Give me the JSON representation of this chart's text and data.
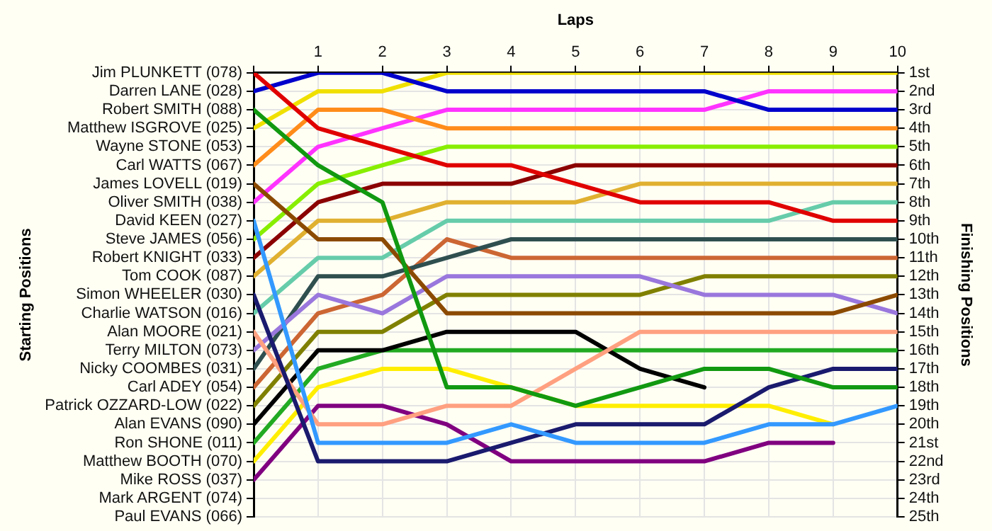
{
  "chart_data": {
    "type": "line",
    "xlabel": "Laps",
    "annotations": [
      "Starting Positions"
    ],
    "y2label": "Finishing Positions",
    "x": [
      0,
      1,
      2,
      3,
      4,
      5,
      6,
      7,
      8,
      9,
      10
    ],
    "xlim": [
      0,
      10
    ],
    "xticks": [
      {
        "value": 0,
        "label": null
      },
      1,
      2,
      3,
      4,
      5,
      6,
      7,
      8,
      9,
      10
    ],
    "y_categories": [
      "Jim PLUNKETT (078)",
      "Darren LANE (028)",
      "Robert SMITH (088)",
      "Matthew ISGROVE (025)",
      "Wayne STONE (053)",
      "Carl WATTS (067)",
      "James LOVELL (019)",
      "Oliver SMITH (038)",
      "David KEEN (027)",
      "Steve JAMES (056)",
      "Robert KNIGHT (033)",
      "Tom COOK (087)",
      "Simon WHEELER (030)",
      "Charlie WATSON (016)",
      "Alan MOORE (021)",
      "Terry MILTON (073)",
      "Nicky COOMBES (031)",
      "Carl ADEY (054)",
      "Patrick OZZARD-LOW (022)",
      "Alan EVANS (090)",
      "Ron SHONE (011)",
      "Matthew BOOTH (070)",
      "Mike ROSS (037)",
      "Mark ARGENT (074)",
      "Paul EVANS (066)"
    ],
    "y2lim": [
      25,
      1
    ],
    "y2ticks": [
      {
        "value": 1,
        "label": "1st"
      },
      {
        "value": 2,
        "label": "2nd"
      },
      {
        "value": 3,
        "label": "3rd"
      },
      {
        "value": 4,
        "label": "4th"
      },
      {
        "value": 5,
        "label": "5th"
      },
      {
        "value": 6,
        "label": "6th"
      },
      {
        "value": 7,
        "label": "7th"
      },
      {
        "value": 8,
        "label": "8th"
      },
      {
        "value": 9,
        "label": "9th"
      },
      {
        "value": 10,
        "label": "10th"
      },
      {
        "value": 11,
        "label": "11th"
      },
      {
        "value": 12,
        "label": "12th"
      },
      {
        "value": 13,
        "label": "13th"
      },
      {
        "value": 14,
        "label": "14th"
      },
      {
        "value": 15,
        "label": "15th"
      },
      {
        "value": 16,
        "label": "16th"
      },
      {
        "value": 17,
        "label": "17th"
      },
      {
        "value": 18,
        "label": "18th"
      },
      {
        "value": 19,
        "label": "19th"
      },
      {
        "value": 20,
        "label": "20th"
      },
      {
        "value": 21,
        "label": "21st"
      },
      {
        "value": 22,
        "label": "22nd"
      },
      {
        "value": 23,
        "label": "23rd"
      },
      {
        "value": 24,
        "label": "24th"
      },
      {
        "value": 25,
        "label": "25th"
      }
    ],
    "grid": true,
    "marker": "none",
    "line_style": "solid",
    "series": [
      {
        "color": "#e00000",
        "axis": "y2",
        "values": [
          1,
          4,
          5,
          6,
          6,
          7,
          8,
          8,
          8,
          9,
          9
        ]
      },
      {
        "color": "#0000cc",
        "axis": "y2",
        "values": [
          2,
          1,
          1,
          2,
          2,
          2,
          2,
          2,
          3,
          3,
          3
        ]
      },
      {
        "color": "#119911",
        "axis": "y2",
        "values": [
          3,
          6,
          8,
          18,
          18,
          19,
          18,
          17,
          17,
          18,
          18
        ]
      },
      {
        "color": "#f0e000",
        "axis": "y2",
        "values": [
          4,
          2,
          2,
          1,
          1,
          1,
          1,
          1,
          1,
          1,
          1
        ]
      },
      {
        "color": "#ff8c1a",
        "axis": "y2",
        "values": [
          6,
          3,
          3,
          4,
          4,
          4,
          4,
          4,
          4,
          4,
          4
        ]
      },
      {
        "color": "#8b4a00",
        "axis": "y2",
        "values": [
          7,
          10,
          10,
          14,
          14,
          14,
          14,
          14,
          14,
          14,
          13
        ]
      },
      {
        "color": "#ff33ff",
        "axis": "y2",
        "values": [
          8,
          5,
          4,
          3,
          3,
          3,
          3,
          3,
          2,
          2,
          2
        ]
      },
      {
        "color": "#3399ff",
        "axis": "y2",
        "values": [
          9,
          21,
          21,
          21,
          20,
          21,
          21,
          21,
          20,
          20,
          19
        ]
      },
      {
        "color": "#88ee00",
        "axis": "y2",
        "values": [
          10,
          7,
          6,
          5,
          5,
          5,
          5,
          5,
          5,
          5,
          5
        ]
      },
      {
        "color": "#8b0000",
        "axis": "y2",
        "values": [
          11,
          8,
          7,
          7,
          7,
          6,
          6,
          6,
          6,
          6,
          6
        ]
      },
      {
        "color": "#e0b030",
        "axis": "y2",
        "values": [
          12,
          9,
          9,
          8,
          8,
          8,
          7,
          7,
          7,
          7,
          7
        ]
      },
      {
        "color": "#1a1a6e",
        "axis": "y2",
        "values": [
          13,
          22,
          22,
          22,
          21,
          20,
          20,
          20,
          18,
          17,
          17
        ]
      },
      {
        "color": "#66ccaa",
        "axis": "y2",
        "values": [
          14,
          11,
          11,
          9,
          9,
          9,
          9,
          9,
          9,
          8,
          8
        ]
      },
      {
        "color": "#ffa080",
        "axis": "y2",
        "values": [
          15,
          20,
          20,
          19,
          19,
          17,
          15,
          15,
          15,
          15,
          15
        ]
      },
      {
        "color": "#9977dd",
        "axis": "y2",
        "values": [
          16,
          13,
          14,
          12,
          12,
          12,
          12,
          13,
          13,
          13,
          14
        ]
      },
      {
        "color": "#2f4f4f",
        "axis": "y2",
        "values": [
          17,
          12,
          12,
          11,
          10,
          10,
          10,
          10,
          10,
          10,
          10
        ]
      },
      {
        "color": "#cc6633",
        "axis": "y2",
        "values": [
          18,
          14,
          13,
          10,
          11,
          11,
          11,
          11,
          11,
          11,
          11
        ]
      },
      {
        "color": "#808000",
        "axis": "y2",
        "values": [
          19,
          15,
          15,
          13,
          13,
          13,
          13,
          12,
          12,
          12,
          12
        ]
      },
      {
        "color": "#000000",
        "axis": "y2",
        "values": [
          20,
          16,
          16,
          15,
          15,
          15,
          17,
          18,
          null,
          null,
          null
        ]
      },
      {
        "color": "#22aa22",
        "axis": "y2",
        "values": [
          21,
          17,
          16,
          16,
          16,
          16,
          16,
          16,
          16,
          16,
          16
        ]
      },
      {
        "color": "#ffee00",
        "axis": "y2",
        "values": [
          22,
          18,
          17,
          17,
          18,
          19,
          19,
          19,
          19,
          20,
          null
        ]
      },
      {
        "color": "#800080",
        "axis": "y2",
        "values": [
          23,
          19,
          19,
          20,
          22,
          22,
          22,
          22,
          21,
          21,
          null
        ]
      }
    ]
  }
}
